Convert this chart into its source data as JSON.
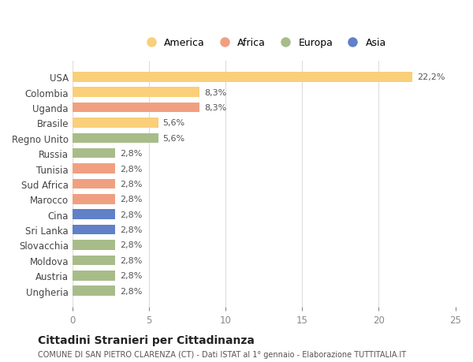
{
  "countries": [
    "USA",
    "Colombia",
    "Uganda",
    "Brasile",
    "Regno Unito",
    "Russia",
    "Tunisia",
    "Sud Africa",
    "Marocco",
    "Cina",
    "Sri Lanka",
    "Slovacchia",
    "Moldova",
    "Austria",
    "Ungheria"
  ],
  "values": [
    22.2,
    8.3,
    8.3,
    5.6,
    5.6,
    2.8,
    2.8,
    2.8,
    2.8,
    2.8,
    2.8,
    2.8,
    2.8,
    2.8,
    2.8
  ],
  "labels": [
    "22,2%",
    "8,3%",
    "8,3%",
    "5,6%",
    "5,6%",
    "2,8%",
    "2,8%",
    "2,8%",
    "2,8%",
    "2,8%",
    "2,8%",
    "2,8%",
    "2,8%",
    "2,8%",
    "2,8%"
  ],
  "continents": [
    "America",
    "America",
    "Africa",
    "America",
    "Europa",
    "Europa",
    "Africa",
    "Africa",
    "Africa",
    "Asia",
    "Asia",
    "Europa",
    "Europa",
    "Europa",
    "Europa"
  ],
  "colors": {
    "America": "#F9CF7A",
    "Africa": "#F0A080",
    "Europa": "#A8BC8A",
    "Asia": "#6080C8"
  },
  "legend_order": [
    "America",
    "Africa",
    "Europa",
    "Asia"
  ],
  "title": "Cittadini Stranieri per Cittadinanza",
  "subtitle": "COMUNE DI SAN PIETRO CLARENZA (CT) - Dati ISTAT al 1° gennaio - Elaborazione TUTTITALIA.IT",
  "xlim": [
    0,
    25
  ],
  "xticks": [
    0,
    5,
    10,
    15,
    20,
    25
  ],
  "background_color": "#ffffff",
  "bar_height": 0.65,
  "grid_color": "#dddddd"
}
